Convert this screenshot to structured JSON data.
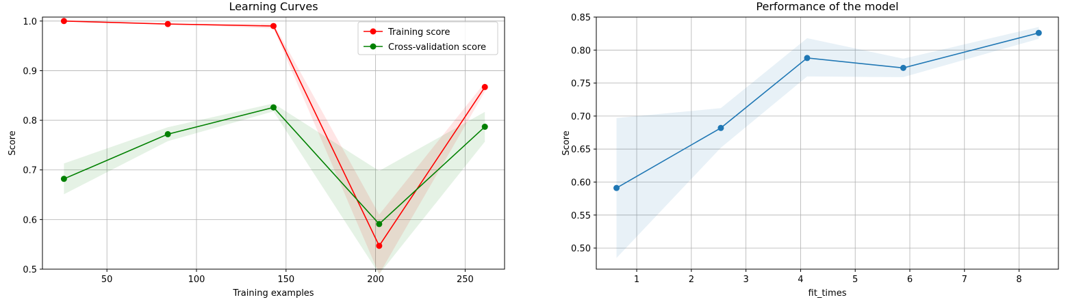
{
  "chart_data": [
    {
      "type": "line",
      "title": "Learning Curves",
      "xlabel": "Training examples",
      "ylabel": "Score",
      "xlim": [
        14,
        272
      ],
      "ylim": [
        0.5,
        1.008
      ],
      "xticks": [
        50,
        100,
        150,
        200,
        250
      ],
      "yticks": [
        0.5,
        0.6,
        0.7,
        0.8,
        0.9,
        1.0
      ],
      "ytick_labels": [
        "0.5",
        "0.6",
        "0.7",
        "0.8",
        "0.9",
        "1.0"
      ],
      "grid": true,
      "legend_placement": "top-right",
      "x": [
        26,
        84,
        143,
        202,
        261
      ],
      "series": [
        {
          "name": "Training score",
          "color": "#ff0000",
          "values": [
            1.0,
            0.994,
            0.99,
            0.547,
            0.867
          ],
          "band_lower": [
            1.0,
            0.994,
            0.985,
            0.49,
            0.858
          ],
          "band_upper": [
            1.0,
            0.994,
            0.995,
            0.61,
            0.876
          ]
        },
        {
          "name": "Cross-validation score",
          "color": "#008000",
          "values": [
            0.682,
            0.772,
            0.826,
            0.591,
            0.787
          ],
          "band_lower": [
            0.651,
            0.758,
            0.818,
            0.49,
            0.757
          ],
          "band_upper": [
            0.713,
            0.786,
            0.834,
            0.698,
            0.817
          ]
        }
      ]
    },
    {
      "type": "line",
      "title": "Performance of the model",
      "xlabel": "fit_times",
      "ylabel": "Score",
      "xlim": [
        0.26,
        8.72
      ],
      "ylim": [
        0.468,
        0.85
      ],
      "xticks": [
        1,
        2,
        3,
        4,
        5,
        6,
        7,
        8
      ],
      "yticks": [
        0.5,
        0.55,
        0.6,
        0.65,
        0.7,
        0.75,
        0.8,
        0.85
      ],
      "ytick_labels": [
        "0.50",
        "0.55",
        "0.60",
        "0.65",
        "0.70",
        "0.75",
        "0.80",
        "0.85"
      ],
      "grid": true,
      "x": [
        0.63,
        2.54,
        4.12,
        5.88,
        8.36
      ],
      "series": [
        {
          "color": "#1f77b4",
          "values": [
            0.591,
            0.682,
            0.788,
            0.773,
            0.826
          ],
          "band_lower": [
            0.485,
            0.652,
            0.76,
            0.759,
            0.817
          ],
          "band_upper": [
            0.697,
            0.712,
            0.818,
            0.787,
            0.835
          ]
        }
      ]
    }
  ]
}
